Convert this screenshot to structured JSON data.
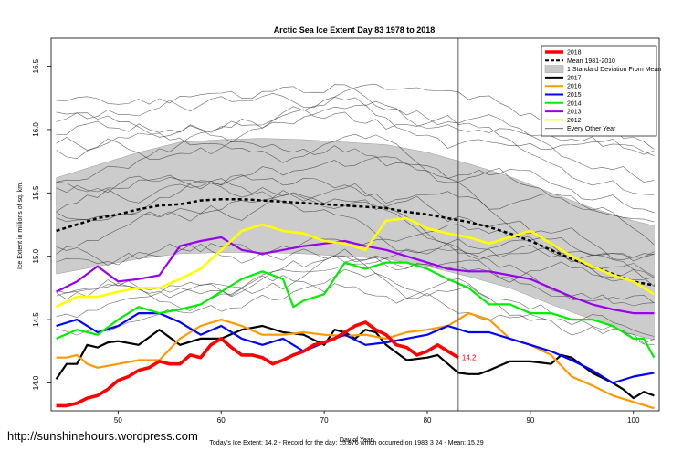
{
  "chart_data": {
    "type": "line",
    "title": "Arctic Sea Ice Extent Day 83 1978 to 2018",
    "xlabel": "Day of Year",
    "ylabel": "Ice Extent in millions of sq. km.",
    "xlim": [
      43.5,
      102.5
    ],
    "ylim": [
      13.78,
      16.72
    ],
    "xticks": [
      50,
      60,
      70,
      80,
      90,
      100
    ],
    "yticks": [
      14.0,
      14.5,
      15.0,
      15.5,
      16.0,
      16.5
    ],
    "xtick_labels": [
      "50",
      "60",
      "70",
      "80",
      "90",
      "100"
    ],
    "ytick_labels": [
      "14.0",
      "14.5",
      "15.0",
      "15.5",
      "16.0",
      "16.5"
    ],
    "marker_day": 83,
    "annotation": {
      "text": "14.2",
      "day": 83,
      "value": 14.2
    },
    "legend": {
      "position": "top-right",
      "entries": [
        {
          "label": "2018",
          "color": "#ff0000",
          "style": "thick"
        },
        {
          "label": "Mean 1981-2010",
          "color": "#000000",
          "style": "dashed"
        },
        {
          "label": "1 Standard Deviation From Mean",
          "color": "#c8c8c8",
          "style": "band"
        },
        {
          "label": "2017",
          "color": "#000000",
          "style": "solid"
        },
        {
          "label": "2016",
          "color": "#ff9900",
          "style": "solid"
        },
        {
          "label": "2015",
          "color": "#0000ff",
          "style": "solid"
        },
        {
          "label": "2014",
          "color": "#00ee00",
          "style": "solid"
        },
        {
          "label": "2013",
          "color": "#9900ee",
          "style": "solid"
        },
        {
          "label": "2012",
          "color": "#ffff00",
          "style": "solid"
        },
        {
          "label": "Every Other Year",
          "color": "#555555",
          "style": "thin"
        }
      ]
    },
    "std_band": {
      "x": [
        44,
        48,
        52,
        56,
        60,
        64,
        68,
        72,
        76,
        80,
        84,
        88,
        92,
        96,
        100,
        102
      ],
      "upper": [
        15.62,
        15.72,
        15.82,
        15.9,
        15.92,
        15.93,
        15.92,
        15.9,
        15.88,
        15.82,
        15.73,
        15.63,
        15.5,
        15.38,
        15.28,
        15.24
      ],
      "lower": [
        14.86,
        14.92,
        14.98,
        15.02,
        15.03,
        15.03,
        15.02,
        15.0,
        14.98,
        14.92,
        14.84,
        14.75,
        14.62,
        14.5,
        14.38,
        14.34
      ]
    },
    "series": [
      {
        "name": "Mean 1981-2010",
        "color": "#000000",
        "width": 2.5,
        "dash": "4,3",
        "x": [
          44,
          46,
          48,
          50,
          52,
          54,
          56,
          58,
          60,
          62,
          64,
          66,
          68,
          70,
          72,
          74,
          76,
          78,
          80,
          82,
          84,
          86,
          88,
          90,
          92,
          94,
          96,
          98,
          100,
          102
        ],
        "y": [
          15.2,
          15.25,
          15.3,
          15.33,
          15.37,
          15.4,
          15.41,
          15.44,
          15.45,
          15.45,
          15.44,
          15.43,
          15.42,
          15.41,
          15.4,
          15.39,
          15.38,
          15.35,
          15.33,
          15.3,
          15.27,
          15.23,
          15.18,
          15.12,
          15.05,
          14.98,
          14.92,
          14.86,
          14.8,
          14.77
        ]
      },
      {
        "name": "2017",
        "color": "#000000",
        "width": 2.2,
        "x": [
          44,
          45,
          46,
          47,
          48,
          49,
          50,
          52,
          54,
          56,
          58,
          60,
          62,
          64,
          66,
          68,
          70,
          71,
          72,
          73,
          74,
          75,
          76,
          78,
          80,
          81,
          82,
          83,
          84,
          85,
          86,
          88,
          90,
          92,
          93,
          94,
          96,
          98,
          99,
          100,
          101,
          102
        ],
        "y": [
          14.03,
          14.15,
          14.15,
          14.3,
          14.28,
          14.32,
          14.33,
          14.3,
          14.42,
          14.3,
          14.35,
          14.35,
          14.42,
          14.45,
          14.4,
          14.38,
          14.3,
          14.42,
          14.4,
          14.35,
          14.42,
          14.4,
          14.3,
          14.18,
          14.2,
          14.22,
          14.15,
          14.08,
          14.07,
          14.07,
          14.1,
          14.17,
          14.17,
          14.15,
          14.22,
          14.2,
          14.08,
          14.0,
          13.95,
          13.88,
          13.93,
          13.9
        ]
      },
      {
        "name": "2016",
        "color": "#ff9900",
        "width": 2.2,
        "x": [
          44,
          45,
          46,
          47,
          48,
          50,
          52,
          54,
          56,
          58,
          60,
          62,
          64,
          66,
          68,
          70,
          72,
          74,
          76,
          78,
          80,
          82,
          84,
          86,
          88,
          90,
          92,
          94,
          96,
          98,
          100,
          102
        ],
        "y": [
          14.2,
          14.2,
          14.22,
          14.15,
          14.12,
          14.15,
          14.18,
          14.18,
          14.35,
          14.45,
          14.5,
          14.45,
          14.38,
          14.38,
          14.4,
          14.38,
          14.37,
          14.38,
          14.35,
          14.4,
          14.42,
          14.45,
          14.55,
          14.5,
          14.35,
          14.3,
          14.22,
          14.05,
          13.98,
          13.9,
          13.85,
          13.8
        ]
      },
      {
        "name": "2015",
        "color": "#0000ff",
        "width": 2.2,
        "x": [
          44,
          46,
          48,
          50,
          52,
          54,
          56,
          58,
          60,
          62,
          64,
          66,
          68,
          70,
          72,
          74,
          76,
          78,
          80,
          82,
          84,
          86,
          88,
          90,
          92,
          94,
          96,
          98,
          100,
          102
        ],
        "y": [
          14.45,
          14.5,
          14.4,
          14.45,
          14.55,
          14.55,
          14.48,
          14.38,
          14.45,
          14.35,
          14.3,
          14.35,
          14.25,
          14.32,
          14.38,
          14.3,
          14.32,
          14.35,
          14.38,
          14.45,
          14.4,
          14.4,
          14.35,
          14.3,
          14.25,
          14.18,
          14.1,
          14.0,
          14.05,
          14.08
        ]
      },
      {
        "name": "2014",
        "color": "#00ee00",
        "width": 2.2,
        "x": [
          44,
          46,
          48,
          50,
          52,
          54,
          56,
          58,
          60,
          62,
          64,
          66,
          67,
          68,
          70,
          72,
          74,
          76,
          78,
          80,
          82,
          84,
          86,
          88,
          90,
          92,
          94,
          96,
          98,
          100,
          101,
          102
        ],
        "y": [
          14.35,
          14.42,
          14.38,
          14.5,
          14.6,
          14.55,
          14.58,
          14.62,
          14.72,
          14.82,
          14.88,
          14.82,
          14.6,
          14.65,
          14.7,
          14.95,
          14.9,
          14.95,
          14.95,
          14.9,
          14.82,
          14.75,
          14.62,
          14.62,
          14.55,
          14.55,
          14.5,
          14.5,
          14.45,
          14.35,
          14.35,
          14.2
        ]
      },
      {
        "name": "2013",
        "color": "#9900ee",
        "width": 2.2,
        "x": [
          44,
          46,
          48,
          50,
          52,
          54,
          56,
          58,
          60,
          62,
          64,
          66,
          68,
          70,
          72,
          74,
          76,
          78,
          80,
          82,
          84,
          86,
          88,
          90,
          92,
          94,
          96,
          98,
          100,
          102
        ],
        "y": [
          14.72,
          14.8,
          14.92,
          14.8,
          14.82,
          14.85,
          15.08,
          15.12,
          15.15,
          15.05,
          15.02,
          15.05,
          15.08,
          15.1,
          15.12,
          15.08,
          15.05,
          15.0,
          14.95,
          14.9,
          14.88,
          14.88,
          14.85,
          14.82,
          14.75,
          14.68,
          14.62,
          14.58,
          14.55,
          14.55
        ]
      },
      {
        "name": "2012",
        "color": "#ffff00",
        "width": 2.6,
        "x": [
          44,
          46,
          48,
          50,
          52,
          54,
          56,
          58,
          60,
          62,
          64,
          66,
          68,
          70,
          72,
          74,
          76,
          78,
          80,
          82,
          84,
          86,
          88,
          90,
          92,
          94,
          96,
          98,
          100,
          102
        ],
        "y": [
          14.6,
          14.68,
          14.68,
          14.72,
          14.75,
          14.75,
          14.82,
          14.9,
          15.05,
          15.2,
          15.25,
          15.2,
          15.18,
          15.12,
          15.1,
          15.05,
          15.28,
          15.3,
          15.22,
          15.18,
          15.15,
          15.1,
          15.15,
          15.2,
          15.1,
          15.0,
          14.92,
          14.85,
          14.8,
          14.7
        ]
      },
      {
        "name": "2018",
        "color": "#ff0000",
        "width": 3.6,
        "x": [
          44,
          45,
          46,
          47,
          48,
          49,
          50,
          51,
          52,
          53,
          54,
          55,
          56,
          57,
          58,
          59,
          60,
          61,
          62,
          63,
          64,
          65,
          66,
          67,
          68,
          69,
          70,
          71,
          72,
          73,
          74,
          75,
          76,
          77,
          78,
          79,
          80,
          81,
          82,
          83
        ],
        "y": [
          13.82,
          13.82,
          13.84,
          13.88,
          13.9,
          13.95,
          14.02,
          14.05,
          14.1,
          14.12,
          14.17,
          14.15,
          14.15,
          14.22,
          14.2,
          14.3,
          14.35,
          14.28,
          14.22,
          14.22,
          14.2,
          14.15,
          14.18,
          14.22,
          14.25,
          14.3,
          14.32,
          14.35,
          14.4,
          14.45,
          14.48,
          14.42,
          14.38,
          14.3,
          14.28,
          14.22,
          14.25,
          14.3,
          14.25,
          14.2
        ]
      }
    ]
  },
  "footer": {
    "url": "http://sunshinehours.wordpress.com",
    "note": "Today's Ice Extent: 14.2  - Record for the day: 15.976 which occurred on 1983 3 24  - Mean: 15.29"
  }
}
